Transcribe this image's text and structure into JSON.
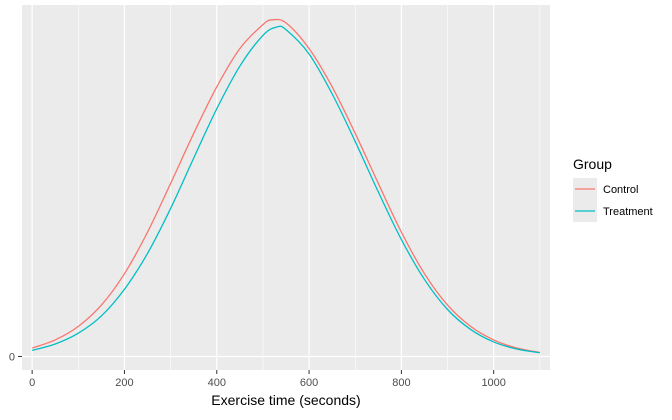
{
  "chart_data": {
    "type": "line",
    "xlabel": "Exercise time (seconds)",
    "ylabel": "",
    "title": "",
    "xlim": [
      -22,
      1122
    ],
    "ylim": [
      -0.04,
      1.04
    ],
    "x_ticks": [
      0,
      200,
      400,
      600,
      800,
      1000
    ],
    "x_tick_labels": [
      "0",
      "200",
      "400",
      "600",
      "800",
      "1000"
    ],
    "x_minor_ticks": [
      100,
      300,
      500,
      700,
      900,
      1100
    ],
    "y_ticks": [
      0
    ],
    "y_tick_labels": [
      "0"
    ],
    "grid": true,
    "legend": {
      "title": "Group",
      "position": "right"
    },
    "series": [
      {
        "name": "Control",
        "color": "#F8766D",
        "x": [
          0,
          50,
          100,
          150,
          200,
          250,
          300,
          350,
          400,
          450,
          500,
          520,
          550,
          600,
          650,
          700,
          750,
          800,
          850,
          900,
          950,
          1000,
          1050,
          1100
        ],
        "y": [
          0.025,
          0.049,
          0.089,
          0.152,
          0.245,
          0.368,
          0.512,
          0.66,
          0.798,
          0.911,
          0.982,
          0.996,
          0.987,
          0.911,
          0.798,
          0.66,
          0.512,
          0.368,
          0.245,
          0.152,
          0.089,
          0.049,
          0.025,
          0.012
        ]
      },
      {
        "name": "Treatment",
        "color": "#00BFC4",
        "x": [
          0,
          50,
          100,
          150,
          200,
          250,
          300,
          350,
          400,
          450,
          500,
          530,
          550,
          600,
          650,
          700,
          750,
          800,
          850,
          900,
          950,
          1000,
          1050,
          1100
        ],
        "y": [
          0.018,
          0.037,
          0.069,
          0.12,
          0.199,
          0.305,
          0.438,
          0.587,
          0.733,
          0.859,
          0.95,
          0.975,
          0.967,
          0.895,
          0.777,
          0.636,
          0.487,
          0.346,
          0.228,
          0.139,
          0.08,
          0.043,
          0.022,
          0.011
        ]
      }
    ]
  }
}
